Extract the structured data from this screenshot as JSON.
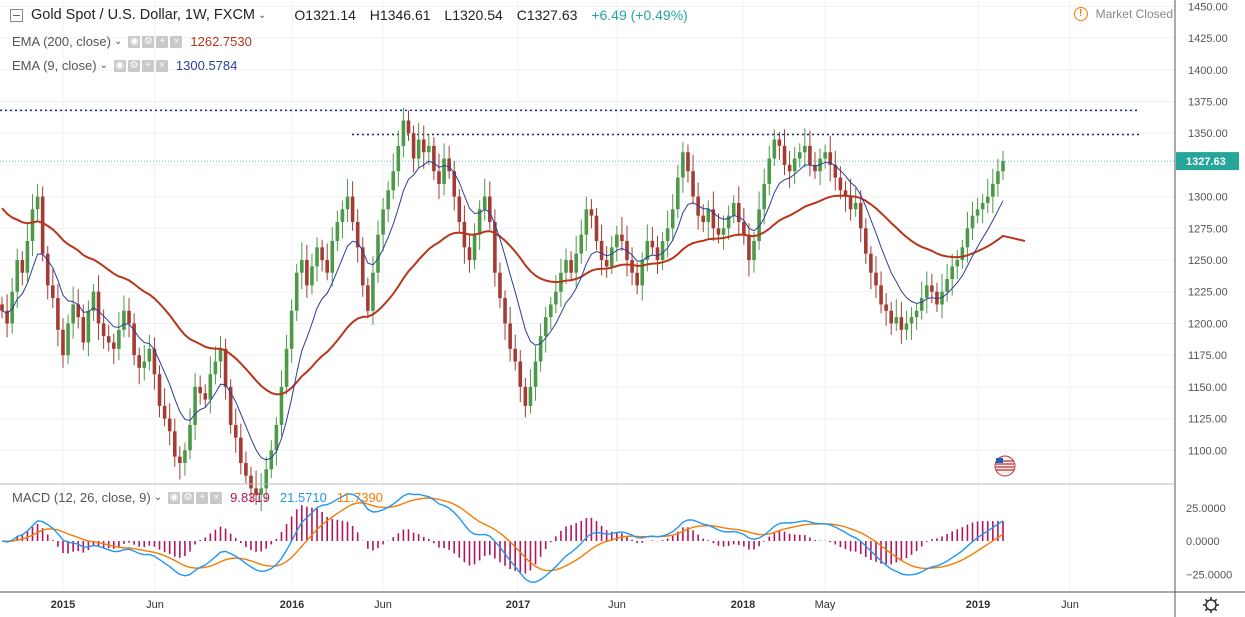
{
  "header": {
    "symbol": "Gold Spot / U.S. Dollar, 1W, FXCM",
    "open": "O1321.14",
    "high": "H1346.61",
    "low": "L1320.54",
    "close": "C1327.63",
    "change": "+6.49 (+0.49%)",
    "market_status": "Market Closed"
  },
  "indicators": {
    "ema200": {
      "label": "EMA (200, close)",
      "value": "1262.7530",
      "color": "#b7361b"
    },
    "ema9": {
      "label": "EMA (9, close)",
      "value": "1300.5784",
      "color": "#2c3e97"
    },
    "macd": {
      "label": "MACD (12, 26, close, 9)",
      "hist": "9.8319",
      "macd": "21.5710",
      "signal": "11.7390",
      "hist_color": "#b0165e",
      "macd_color": "#2196f3",
      "signal_color": "#f57c00"
    }
  },
  "price_badge": "1327.63",
  "colors": {
    "up": "#26a69a",
    "down": "#ef5350",
    "candle_up": "#4c9a48",
    "candle_down": "#a33c34",
    "dotted": "#1a237e"
  },
  "chart_data": {
    "type": "candlestick",
    "price_axis": [
      "1450.00",
      "1425.00",
      "1400.00",
      "1375.00",
      "1350.00",
      "1325.00",
      "1300.00",
      "1275.00",
      "1250.00",
      "1225.00",
      "1200.00",
      "1175.00",
      "1150.00",
      "1125.00",
      "1100.00"
    ],
    "macd_axis": [
      "25.0000",
      "0.0000",
      "−25.0000"
    ],
    "time_axis": [
      "2015",
      "Jun",
      "2016",
      "Jun",
      "2017",
      "Jun",
      "2018",
      "May",
      "2019",
      "Jun"
    ],
    "ylim": [
      1075,
      1455
    ],
    "resistance_levels": [
      1368,
      1349
    ],
    "close_series": [
      1210,
      1200,
      1225,
      1250,
      1240,
      1265,
      1290,
      1300,
      1255,
      1230,
      1220,
      1195,
      1175,
      1200,
      1215,
      1205,
      1185,
      1210,
      1225,
      1200,
      1190,
      1185,
      1180,
      1195,
      1210,
      1200,
      1175,
      1165,
      1170,
      1180,
      1160,
      1135,
      1125,
      1115,
      1095,
      1090,
      1100,
      1120,
      1150,
      1145,
      1140,
      1160,
      1170,
      1180,
      1150,
      1120,
      1110,
      1090,
      1080,
      1070,
      1065,
      1070,
      1085,
      1100,
      1120,
      1150,
      1180,
      1210,
      1240,
      1250,
      1230,
      1245,
      1260,
      1250,
      1240,
      1265,
      1280,
      1290,
      1300,
      1280,
      1260,
      1230,
      1210,
      1240,
      1270,
      1290,
      1305,
      1320,
      1340,
      1360,
      1350,
      1330,
      1345,
      1335,
      1340,
      1320,
      1310,
      1330,
      1320,
      1300,
      1280,
      1260,
      1250,
      1270,
      1290,
      1300,
      1280,
      1240,
      1220,
      1200,
      1180,
      1170,
      1150,
      1135,
      1150,
      1170,
      1190,
      1205,
      1215,
      1225,
      1240,
      1250,
      1240,
      1255,
      1270,
      1290,
      1285,
      1265,
      1250,
      1245,
      1260,
      1270,
      1265,
      1250,
      1240,
      1230,
      1250,
      1265,
      1260,
      1250,
      1265,
      1275,
      1290,
      1315,
      1335,
      1320,
      1300,
      1285,
      1280,
      1290,
      1275,
      1270,
      1275,
      1285,
      1295,
      1280,
      1270,
      1250,
      1265,
      1290,
      1310,
      1330,
      1345,
      1340,
      1325,
      1320,
      1330,
      1335,
      1340,
      1325,
      1320,
      1330,
      1335,
      1325,
      1315,
      1305,
      1300,
      1290,
      1295,
      1275,
      1255,
      1240,
      1230,
      1215,
      1210,
      1200,
      1205,
      1195,
      1200,
      1205,
      1210,
      1220,
      1230,
      1225,
      1215,
      1225,
      1235,
      1245,
      1250,
      1260,
      1275,
      1285,
      1290,
      1295,
      1300,
      1310,
      1320,
      1328
    ]
  }
}
